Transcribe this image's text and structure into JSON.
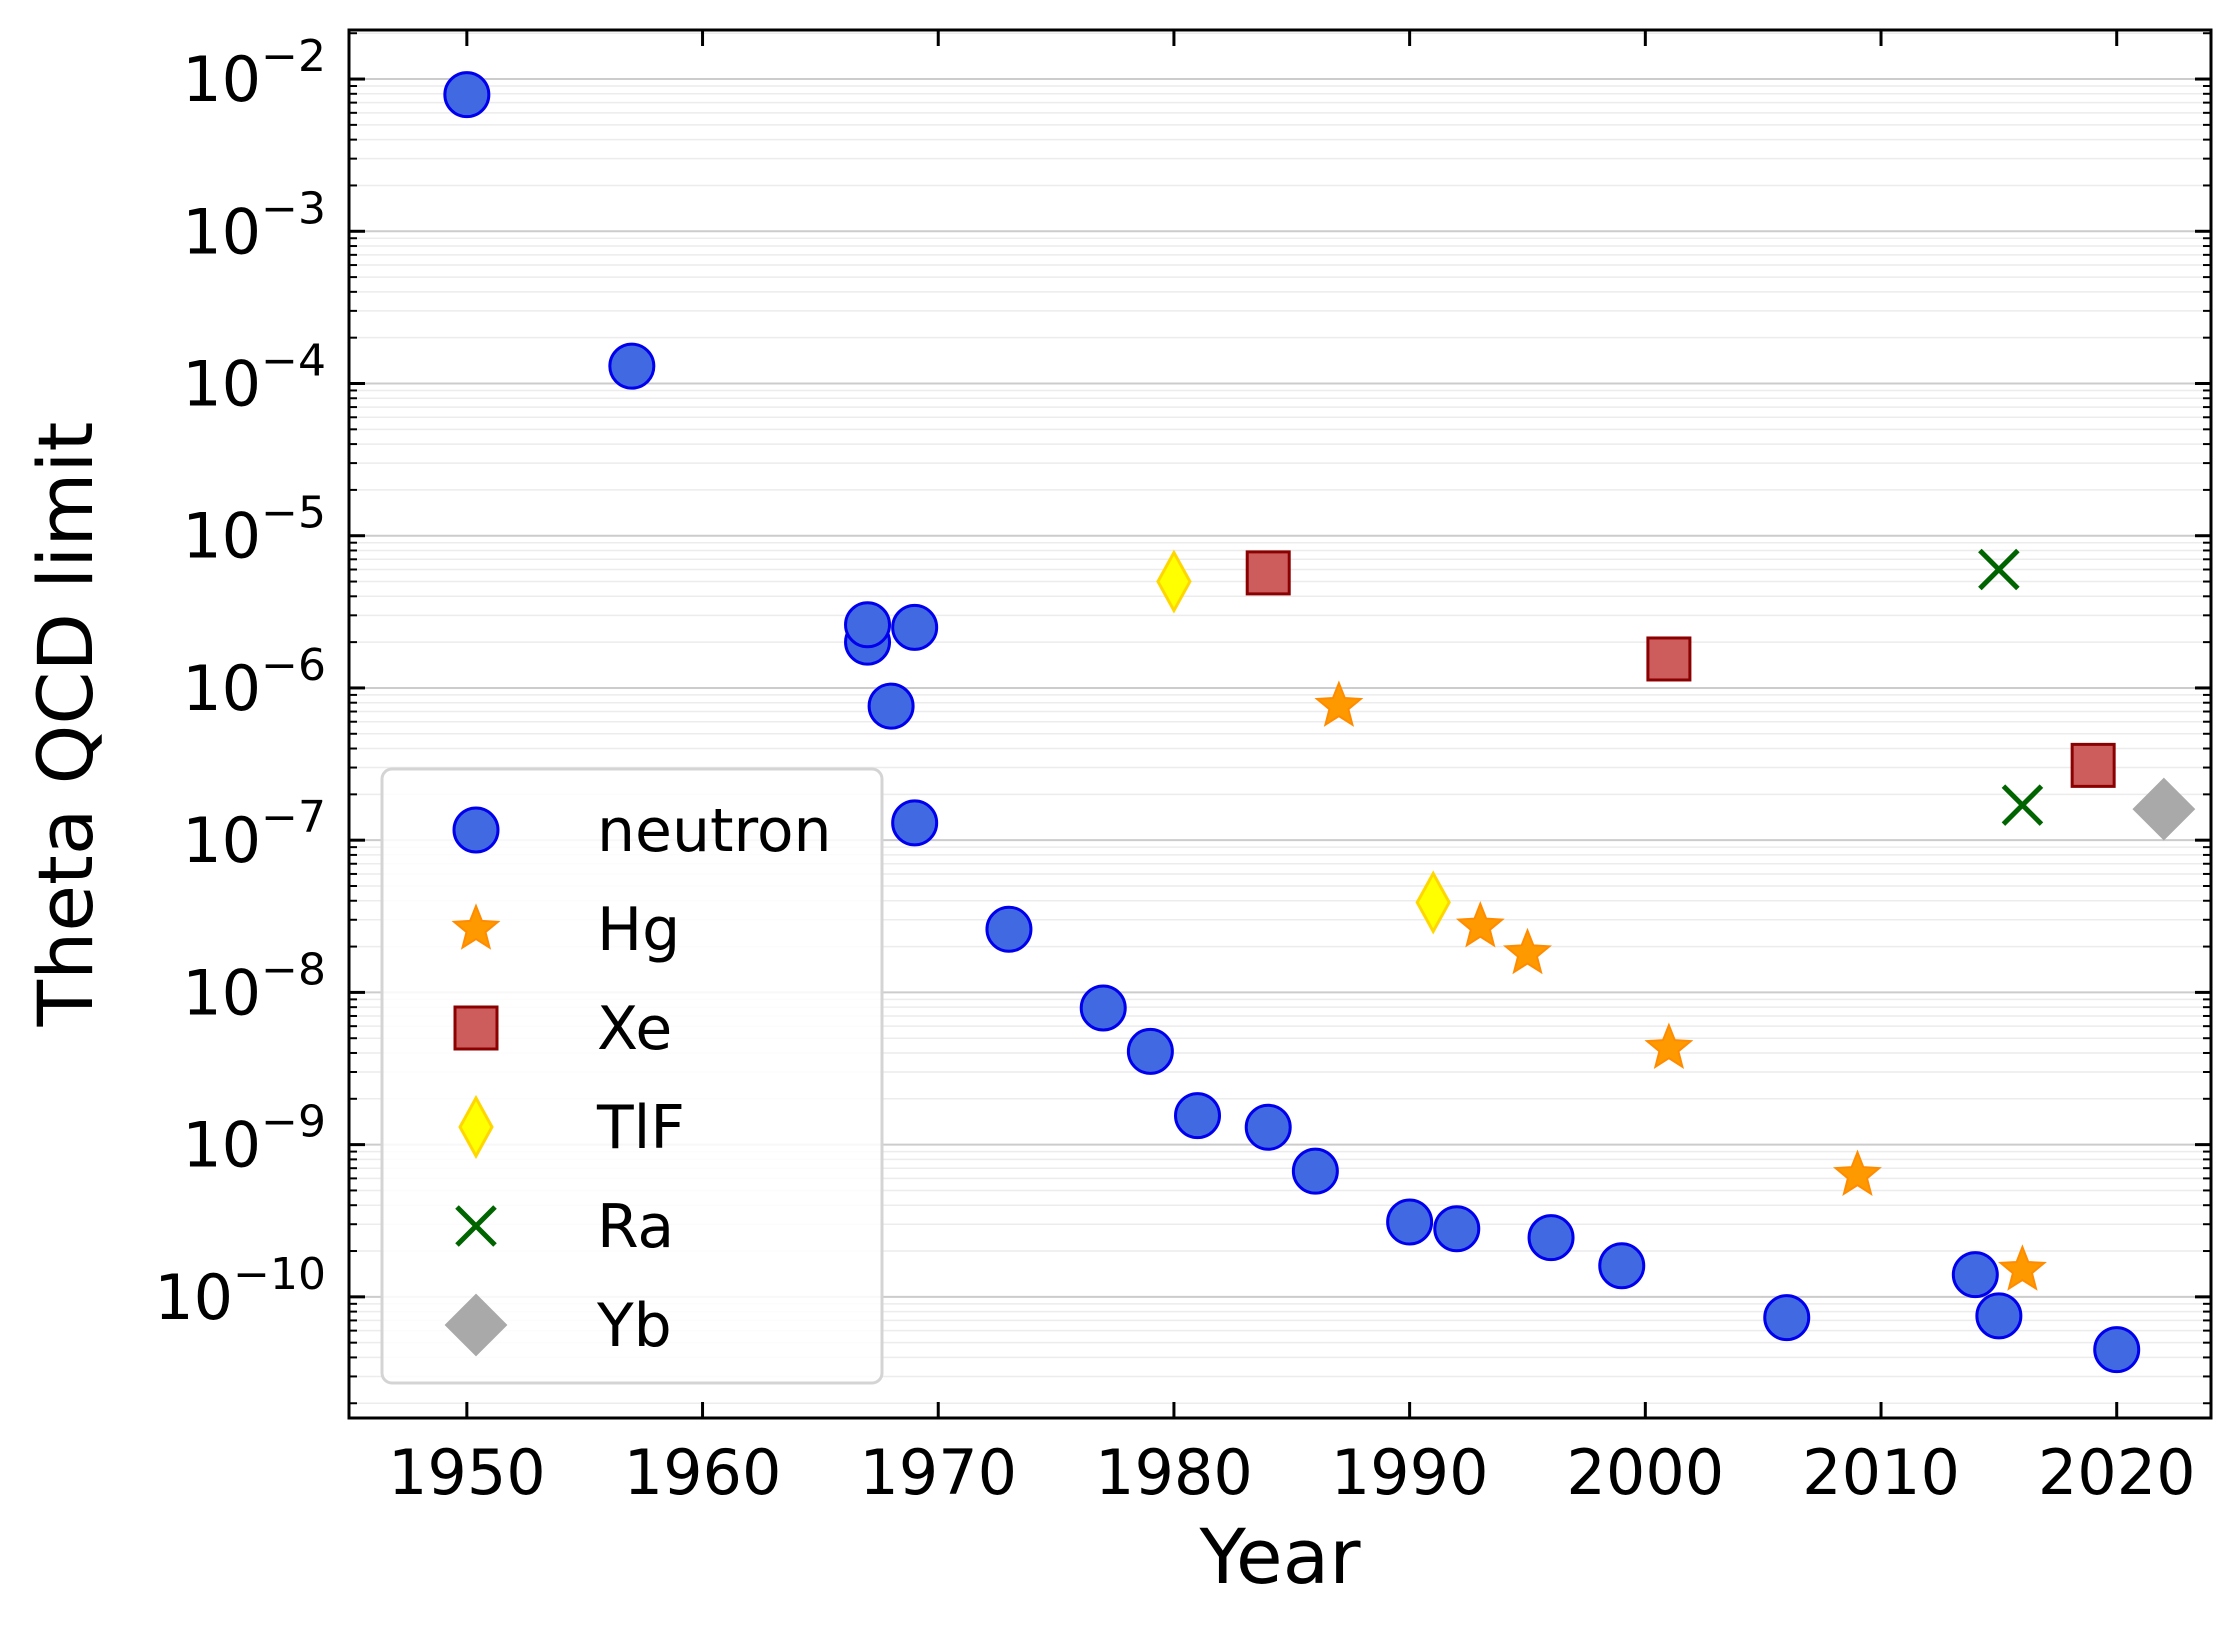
{
  "chart_data": {
    "type": "scatter",
    "title": "",
    "xlabel": "Year",
    "ylabel": "Theta QCD limit",
    "xlim": [
      1945,
      2024
    ],
    "ylim": [
      1.6e-11,
      0.021
    ],
    "yscale": "log",
    "grid": "horizontal",
    "legend_position": "lower-left",
    "xticks": [
      1950,
      1960,
      1970,
      1980,
      1990,
      2000,
      2010,
      2020
    ],
    "xtick_labels": [
      "1950",
      "1960",
      "1970",
      "1980",
      "1990",
      "2000",
      "2010",
      "2020"
    ],
    "yticks": [
      {
        "exp": -2,
        "base": "10",
        "sup": "−2"
      },
      {
        "exp": -3,
        "base": "10",
        "sup": "−3"
      },
      {
        "exp": -4,
        "base": "10",
        "sup": "−4"
      },
      {
        "exp": -5,
        "base": "10",
        "sup": "−5"
      },
      {
        "exp": -6,
        "base": "10",
        "sup": "−6"
      },
      {
        "exp": -7,
        "base": "10",
        "sup": "−7"
      },
      {
        "exp": -8,
        "base": "10",
        "sup": "−8"
      },
      {
        "exp": -9,
        "base": "10",
        "sup": "−9"
      },
      {
        "exp": -10,
        "base": "10",
        "sup": "−10"
      }
    ],
    "series": [
      {
        "name": "neutron",
        "marker": "circle",
        "color": "#4169E1",
        "edge": "#0000EE",
        "points": [
          [
            1950,
            0.0079
          ],
          [
            1957,
            0.00013
          ],
          [
            1967,
            2e-06
          ],
          [
            1967,
            2.6e-06
          ],
          [
            1968,
            7.6e-07
          ],
          [
            1969,
            2.5e-06
          ],
          [
            1969,
            1.3e-07
          ],
          [
            1973,
            2.6e-08
          ],
          [
            1977,
            7.9e-09
          ],
          [
            1979,
            4.1e-09
          ],
          [
            1981,
            1.55e-09
          ],
          [
            1984,
            1.3e-09
          ],
          [
            1986,
            6.7e-10
          ],
          [
            1990,
            3.1e-10
          ],
          [
            1992,
            2.8e-10
          ],
          [
            1996,
            2.45e-10
          ],
          [
            1999,
            1.6e-10
          ],
          [
            2006,
            7.3e-11
          ],
          [
            2014,
            1.4e-10
          ],
          [
            2015,
            7.5e-11
          ],
          [
            2020,
            4.5e-11
          ]
        ]
      },
      {
        "name": "Hg",
        "marker": "star",
        "color": "#FF9900",
        "edge": "#FF8C00",
        "points": [
          [
            1987,
            7.6e-07
          ],
          [
            1993,
            2.7e-08
          ],
          [
            1995,
            1.8e-08
          ],
          [
            2001,
            4.3e-09
          ],
          [
            2009,
            6.3e-10
          ],
          [
            2016,
            1.5e-10
          ]
        ]
      },
      {
        "name": "Xe",
        "marker": "square",
        "color": "#CD5C5C",
        "edge": "#8B0000",
        "points": [
          [
            1984,
            5.7e-06
          ],
          [
            2001,
            1.55e-06
          ],
          [
            2019,
            3.1e-07
          ]
        ]
      },
      {
        "name": "TlF",
        "marker": "diamond",
        "color": "#FFFF00",
        "edge": "#FFD700",
        "points": [
          [
            1980,
            5e-06
          ],
          [
            1991,
            3.9e-08
          ]
        ]
      },
      {
        "name": "Ra",
        "marker": "x",
        "color": "#006400",
        "edge": "#006400",
        "points": [
          [
            2015,
            6e-06
          ],
          [
            2016,
            1.7e-07
          ]
        ]
      },
      {
        "name": "Yb",
        "marker": "bigdiamond",
        "color": "#A9A9A9",
        "edge": "#A9A9A9",
        "points": [
          [
            2022,
            1.6e-07
          ]
        ]
      }
    ]
  }
}
